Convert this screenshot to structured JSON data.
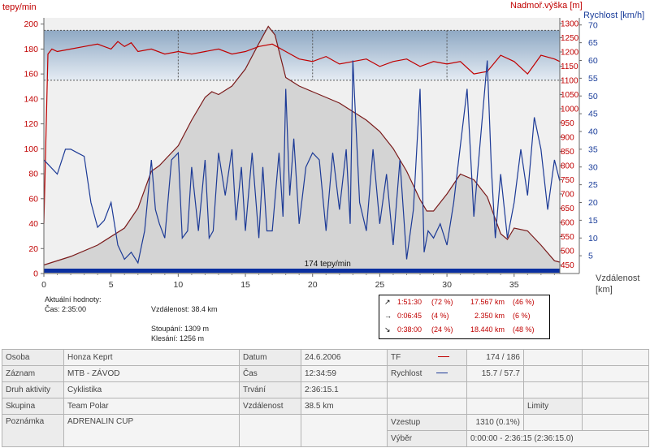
{
  "chart_data": {
    "type": "line",
    "axes": {
      "hr_label": "tepy/min",
      "hr_ticks": [
        0,
        20,
        40,
        60,
        80,
        100,
        120,
        140,
        160,
        180,
        200
      ],
      "hr_range": [
        0,
        205
      ],
      "alt_label": "Nadmoř.výška [m]",
      "alt_ticks": [
        450,
        500,
        550,
        600,
        650,
        700,
        750,
        800,
        850,
        900,
        950,
        1000,
        1050,
        1100,
        1150,
        1200,
        1250,
        1300
      ],
      "alt_range": [
        420,
        1320
      ],
      "speed_label": "Rychlost [km/h]",
      "speed_ticks": [
        5,
        10,
        15,
        20,
        25,
        30,
        35,
        40,
        45,
        50,
        55,
        60,
        65,
        70
      ],
      "speed_range": [
        0,
        72
      ],
      "x_label_1": "Vzdálenost",
      "x_label_2": "[km]",
      "x_ticks": [
        0,
        5,
        10,
        15,
        20,
        25,
        30,
        35
      ],
      "x_range": [
        0,
        38.4
      ]
    },
    "hr_zone": [
      155,
      195
    ],
    "avg_hr_label": "174 tepy/min",
    "altitude": {
      "name": "Nadmoř.výška",
      "color": "#7a1a1a",
      "x": [
        0,
        2,
        4,
        6,
        7,
        8,
        8.6,
        9.2,
        10,
        11,
        12,
        12.5,
        13,
        14,
        15,
        16,
        16.7,
        17.2,
        18,
        19,
        20,
        21,
        22,
        23,
        24,
        25,
        26,
        27,
        28,
        28.5,
        29,
        30,
        31,
        32,
        33,
        34,
        34.5,
        35,
        36,
        37,
        38,
        38.4
      ],
      "y": [
        450,
        480,
        520,
        580,
        650,
        780,
        800,
        830,
        870,
        960,
        1040,
        1060,
        1050,
        1080,
        1140,
        1230,
        1290,
        1260,
        1110,
        1080,
        1060,
        1040,
        1020,
        990,
        960,
        920,
        860,
        780,
        680,
        640,
        640,
        700,
        770,
        750,
        690,
        560,
        540,
        580,
        570,
        520,
        465,
        460
      ]
    },
    "heart_rate": {
      "name": "TF",
      "color": "#c00000",
      "x": [
        0,
        0.3,
        0.6,
        1,
        2,
        3,
        4,
        5,
        5.5,
        6,
        6.5,
        7,
        8,
        9,
        10,
        11,
        12,
        13,
        14,
        15,
        16,
        17,
        18,
        19,
        20,
        21,
        22,
        23,
        24,
        25,
        26,
        27,
        28,
        29,
        30,
        31,
        32,
        33,
        34,
        35,
        36,
        37,
        38,
        38.4
      ],
      "y": [
        40,
        176,
        180,
        178,
        180,
        182,
        184,
        180,
        186,
        182,
        185,
        178,
        180,
        176,
        178,
        176,
        178,
        180,
        176,
        178,
        182,
        184,
        178,
        172,
        170,
        174,
        168,
        170,
        172,
        166,
        170,
        172,
        166,
        170,
        168,
        170,
        160,
        162,
        175,
        170,
        160,
        175,
        172,
        170
      ]
    },
    "speed": {
      "name": "Rychlost",
      "color": "#1c3a96",
      "x": [
        0,
        0.5,
        1,
        1.6,
        2,
        2.5,
        3,
        3.5,
        4,
        4.5,
        5,
        5.5,
        6,
        6.5,
        7,
        7.5,
        8,
        8.3,
        8.6,
        9,
        9.5,
        10,
        10.3,
        10.7,
        11,
        11.5,
        12,
        12.3,
        12.6,
        13,
        13.5,
        14,
        14.3,
        14.7,
        15,
        15.5,
        16,
        16.3,
        16.6,
        17,
        17.5,
        17.8,
        18,
        18.3,
        18.6,
        19,
        19.5,
        20,
        20.5,
        21,
        21.5,
        22,
        22.5,
        22.8,
        23,
        23.5,
        24,
        24.5,
        25,
        25.5,
        26,
        26.5,
        27,
        27.5,
        28,
        28.3,
        28.6,
        29,
        29.5,
        30,
        30.5,
        31,
        31.5,
        32,
        32.5,
        33,
        33.3,
        33.6,
        34,
        34.5,
        35,
        35.5,
        36,
        36.5,
        37,
        37.5,
        38,
        38.4
      ],
      "y": [
        32,
        30,
        28,
        35,
        35,
        34,
        33,
        20,
        13,
        15,
        20,
        8,
        4,
        6,
        3,
        12,
        32,
        18,
        14,
        10,
        32,
        34,
        10,
        12,
        30,
        12,
        32,
        10,
        12,
        34,
        22,
        35,
        15,
        30,
        12,
        34,
        10,
        30,
        12,
        12,
        34,
        16,
        52,
        22,
        38,
        14,
        30,
        34,
        32,
        12,
        34,
        18,
        35,
        14,
        60,
        20,
        12,
        35,
        14,
        28,
        8,
        32,
        4,
        18,
        52,
        6,
        12,
        10,
        14,
        8,
        20,
        36,
        52,
        16,
        38,
        60,
        30,
        10,
        28,
        10,
        20,
        35,
        22,
        44,
        35,
        18,
        32,
        26
      ]
    },
    "info": {
      "current_title": "Aktuální hodnoty:",
      "time_label": "Čas: 2:35:00",
      "distance_label": "Vzdálenost: 38.4 km",
      "climb_label": "Stoupání: 1309 m",
      "descent_label": "Klesání: 1256 m"
    },
    "segments": [
      {
        "arrow": "↗",
        "time": "1:51:30",
        "time_pct": "(72 %)",
        "dist": "17.567 km",
        "dist_pct": "(46 %)"
      },
      {
        "arrow": "→",
        "time": "0:06:45",
        "time_pct": "(4 %)",
        "dist": "2.350 km",
        "dist_pct": "(6 %)"
      },
      {
        "arrow": "↘",
        "time": "0:38:00",
        "time_pct": "(24 %)",
        "dist": "18.440 km",
        "dist_pct": "(48 %)"
      }
    ]
  },
  "table": {
    "osoba_label": "Osoba",
    "osoba": "Honza Keprt",
    "datum_label": "Datum",
    "datum": "24.6.2006",
    "tf_label": "TF",
    "tf": "174 / 186",
    "zaznam_label": "Záznam",
    "zaznam": "MTB - ZÁVOD",
    "cas_label": "Čas",
    "cas": "12:34:59",
    "rychlost_label": "Rychlost",
    "rychlost": "15.7 / 57.7",
    "druh_label": "Druh aktivity",
    "druh": "Cyklistika",
    "trvani_label": "Trvání",
    "trvani": "2:36:15.1",
    "skupina_label": "Skupina",
    "skupina": "Team Polar",
    "vzdalenost_label": "Vzdálenost",
    "vzdalenost": "38.5 km",
    "limity_label": "Limity",
    "poznamka_label": "Poznámka",
    "poznamka": "ADRENALIN CUP",
    "vzestup_label": "Vzestup",
    "vzestup": "1310 (0.1%)",
    "vyber_label": "Výběr",
    "vyber": "0:00:00 - 2:36:15 (2:36:15.0)"
  }
}
